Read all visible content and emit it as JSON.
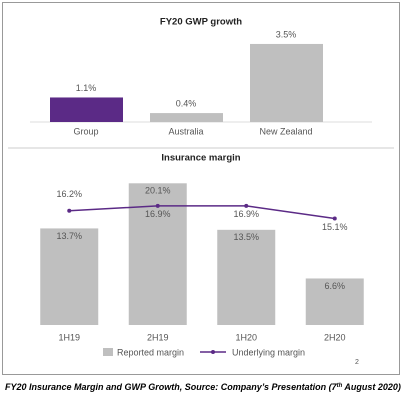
{
  "chart_data": [
    {
      "type": "bar",
      "title": "FY20 GWP growth",
      "categories": [
        "Group",
        "Australia",
        "New Zealand"
      ],
      "values": [
        1.1,
        0.4,
        3.5
      ],
      "value_labels": [
        "1.1%",
        "0.4%",
        "3.5%"
      ],
      "colors": [
        "#5b2a86",
        "#bfbfbf",
        "#bfbfbf"
      ]
    },
    {
      "type": "combo",
      "title": "Insurance margin",
      "categories": [
        "1H19",
        "2H19",
        "1H20",
        "2H20"
      ],
      "series": [
        {
          "name": "Reported margin",
          "type": "bar",
          "color": "#bfbfbf",
          "values": [
            13.7,
            20.1,
            13.5,
            6.6
          ],
          "value_labels": [
            "13.7%",
            "20.1%",
            "13.5%",
            "6.6%"
          ]
        },
        {
          "name": "Underlying margin",
          "type": "line",
          "color": "#5b2a86",
          "values": [
            16.2,
            16.9,
            16.9,
            15.1
          ],
          "value_labels": [
            "16.2%",
            "16.9%",
            "16.9%",
            "15.1%"
          ]
        }
      ],
      "legend": "bottom"
    }
  ],
  "page_number": "2",
  "caption": [
    "FY20 Insurance Margin and GWP Growth, Source: Company’s Presentation (7",
    "th",
    " August 2020)"
  ]
}
